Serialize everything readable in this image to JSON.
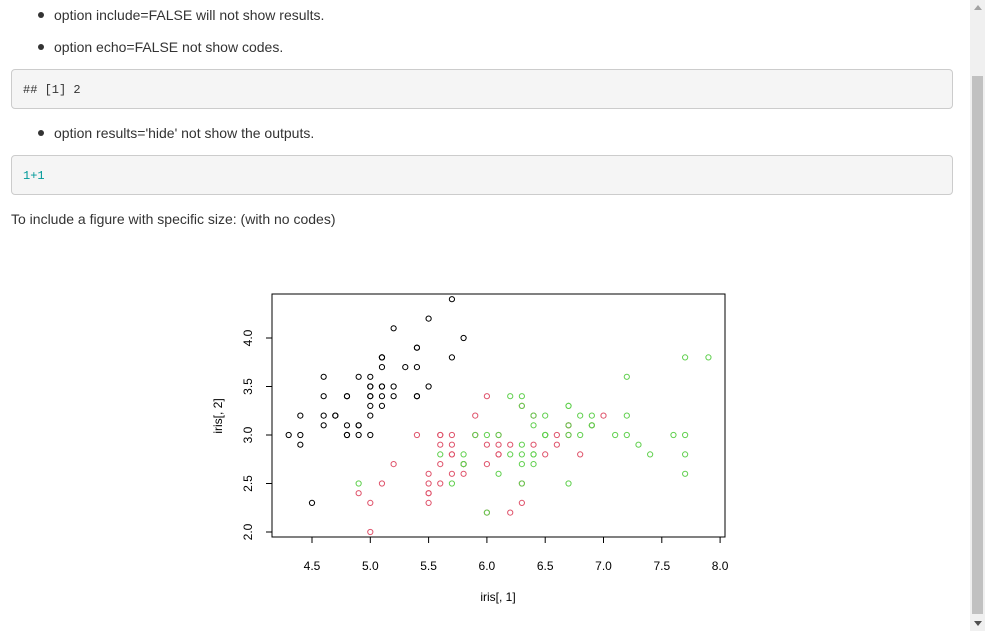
{
  "bullets_top": [
    "option include=FALSE will not show results.",
    "option echo=FALSE not show codes."
  ],
  "output_block": "## [1] 2",
  "bullet_mid": "option results='hide' not show the outputs.",
  "code_block": "1+1",
  "paragraph": "To include a figure with specific size: (with no codes)",
  "colors": {
    "setosa": "#000000",
    "versicolor": "#DF536B",
    "virginica": "#61D04F"
  },
  "chart_data": {
    "type": "scatter",
    "title": "",
    "xlabel": "iris[, 1]",
    "ylabel": "iris[, 2]",
    "xlim": [
      4.3,
      7.9
    ],
    "ylim": [
      2.0,
      4.4
    ],
    "xticks": [
      "4.5",
      "5.0",
      "5.5",
      "6.0",
      "6.5",
      "7.0",
      "7.5",
      "8.0"
    ],
    "yticks": [
      "2.0",
      "2.5",
      "3.0",
      "3.5",
      "4.0"
    ],
    "grid": false,
    "series": [
      {
        "color": "#000000",
        "x": [
          5.1,
          4.9,
          4.7,
          4.6,
          5.0,
          5.4,
          4.6,
          5.0,
          4.4,
          4.9,
          5.4,
          4.8,
          4.8,
          4.3,
          5.8,
          5.7,
          5.4,
          5.1,
          5.7,
          5.1,
          5.4,
          5.1,
          4.6,
          5.1,
          4.8,
          5.0,
          5.0,
          5.2,
          5.2,
          4.7,
          4.8,
          5.4,
          5.2,
          5.5,
          4.9,
          5.0,
          5.5,
          4.9,
          4.4,
          5.1,
          5.0,
          4.5,
          4.4,
          5.0,
          5.1,
          4.8,
          5.1,
          4.6,
          5.3,
          5.0
        ],
        "y": [
          3.5,
          3.0,
          3.2,
          3.1,
          3.6,
          3.9,
          3.4,
          3.4,
          2.9,
          3.1,
          3.7,
          3.4,
          3.0,
          3.0,
          4.0,
          4.4,
          3.9,
          3.5,
          3.8,
          3.8,
          3.4,
          3.7,
          3.6,
          3.3,
          3.4,
          3.0,
          3.4,
          3.5,
          3.4,
          3.2,
          3.1,
          3.4,
          4.1,
          4.2,
          3.1,
          3.2,
          3.5,
          3.6,
          3.0,
          3.4,
          3.5,
          2.3,
          3.2,
          3.5,
          3.8,
          3.0,
          3.8,
          3.2,
          3.7,
          3.3
        ]
      },
      {
        "color": "#DF536B",
        "x": [
          7.0,
          6.4,
          6.9,
          5.5,
          6.5,
          5.7,
          6.3,
          4.9,
          6.6,
          5.2,
          5.0,
          5.9,
          6.0,
          6.1,
          5.6,
          6.7,
          5.6,
          5.8,
          6.2,
          5.6,
          5.9,
          6.1,
          6.3,
          6.1,
          6.4,
          6.6,
          6.8,
          6.7,
          6.0,
          5.7,
          5.5,
          5.5,
          5.8,
          6.0,
          5.4,
          6.0,
          6.7,
          6.3,
          5.6,
          5.5,
          5.5,
          6.1,
          5.8,
          5.0,
          5.6,
          5.7,
          5.7,
          6.2,
          5.1,
          5.7
        ],
        "y": [
          3.2,
          3.2,
          3.1,
          2.3,
          2.8,
          2.8,
          3.3,
          2.4,
          2.9,
          2.7,
          2.0,
          3.0,
          2.2,
          2.9,
          2.9,
          3.1,
          3.0,
          2.7,
          2.2,
          2.5,
          3.2,
          2.8,
          2.5,
          2.8,
          2.9,
          3.0,
          2.8,
          3.0,
          2.9,
          2.6,
          2.4,
          2.4,
          2.7,
          2.7,
          3.0,
          3.4,
          3.1,
          2.3,
          3.0,
          2.5,
          2.6,
          3.0,
          2.6,
          2.3,
          2.7,
          3.0,
          2.9,
          2.9,
          2.5,
          2.8
        ]
      },
      {
        "color": "#61D04F",
        "x": [
          6.3,
          5.8,
          7.1,
          6.3,
          6.5,
          7.6,
          4.9,
          7.3,
          6.7,
          7.2,
          6.5,
          6.4,
          6.8,
          5.7,
          5.8,
          6.4,
          6.5,
          7.7,
          7.7,
          6.0,
          6.9,
          5.6,
          7.7,
          6.3,
          6.7,
          7.2,
          6.2,
          6.1,
          6.4,
          7.2,
          7.4,
          7.9,
          6.4,
          6.3,
          6.1,
          7.7,
          6.3,
          6.4,
          6.0,
          6.9,
          6.7,
          6.9,
          5.8,
          6.8,
          6.7,
          6.7,
          6.3,
          6.5,
          6.2,
          5.9
        ],
        "y": [
          3.3,
          2.7,
          3.0,
          2.9,
          3.0,
          3.0,
          2.5,
          2.9,
          2.5,
          3.6,
          3.2,
          2.7,
          3.0,
          2.5,
          2.8,
          3.2,
          3.0,
          3.8,
          2.6,
          2.2,
          3.2,
          2.8,
          2.8,
          2.7,
          3.3,
          3.2,
          2.8,
          3.0,
          2.8,
          3.0,
          2.8,
          3.8,
          2.8,
          2.8,
          2.6,
          3.0,
          3.4,
          3.1,
          3.0,
          3.1,
          3.1,
          3.1,
          2.7,
          3.2,
          3.3,
          3.0,
          2.5,
          3.0,
          3.4,
          3.0
        ]
      }
    ]
  }
}
